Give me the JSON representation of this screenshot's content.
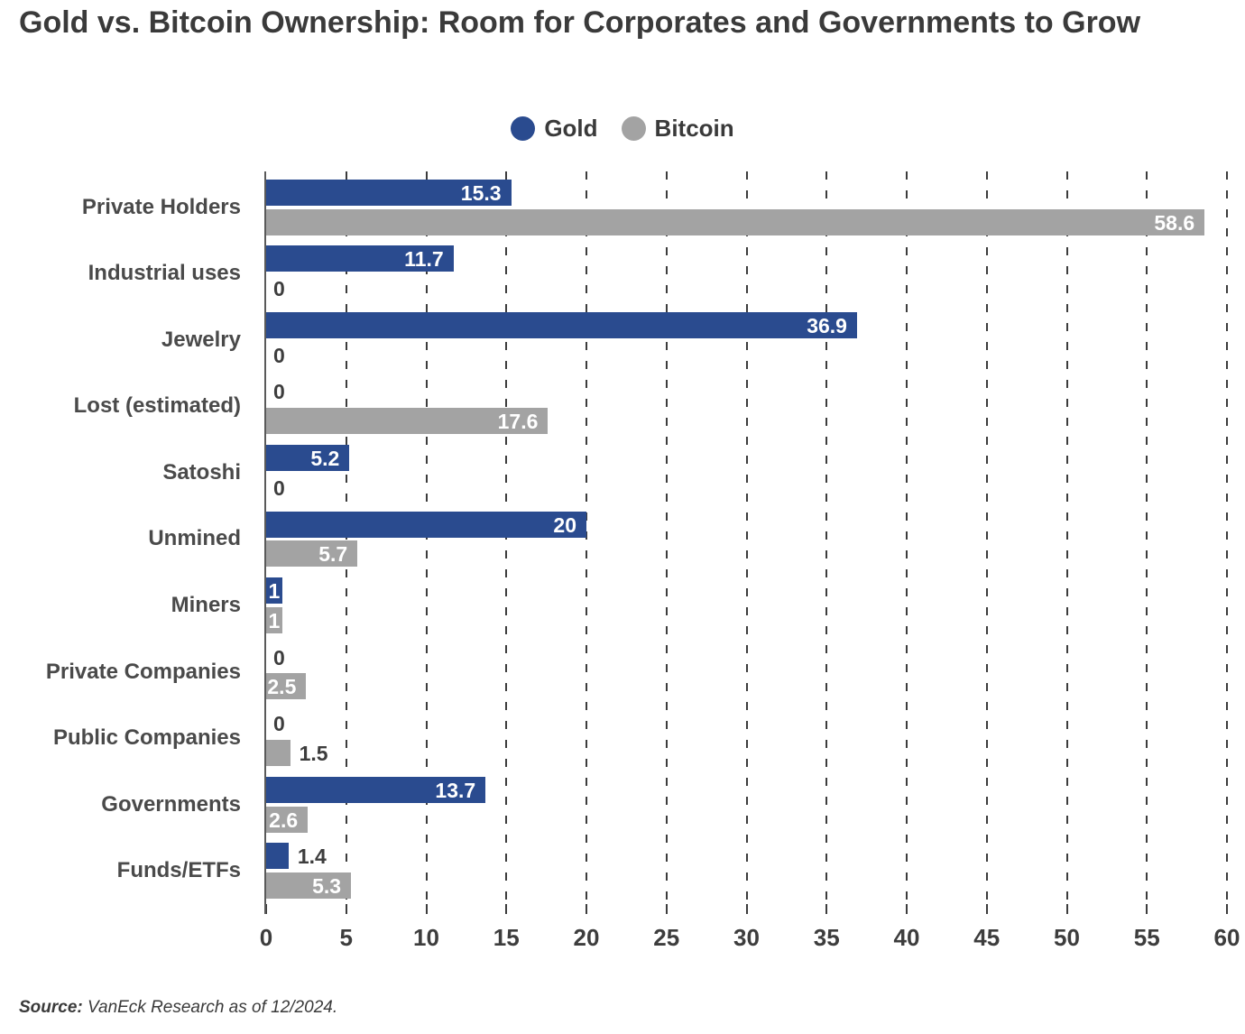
{
  "title": "Gold vs. Bitcoin Ownership: Room for Corporates and Governments to Grow",
  "legend": {
    "items": [
      {
        "label": "Gold",
        "color": "#2a4b8f"
      },
      {
        "label": "Bitcoin",
        "color": "#a3a3a3"
      }
    ]
  },
  "source": {
    "label": "Source:",
    "text": " VanEck Research as of 12/2024."
  },
  "colors": {
    "gold_bar": "#2a4b8f",
    "bitcoin_bar": "#a3a3a3",
    "title_text": "#3a3a3a",
    "axis_text": "#3d3d3d",
    "gridline": "#3c3c3c",
    "value_label_inside": "#ffffff",
    "value_label_outside": "#3d3d3d"
  },
  "chart_data": {
    "type": "bar",
    "orientation": "horizontal",
    "title": "Gold vs. Bitcoin Ownership: Room for Corporates and Governments to Grow",
    "categories": [
      "Private Holders",
      "Industrial uses",
      "Jewelry",
      "Lost (estimated)",
      "Satoshi",
      "Unmined",
      "Miners",
      "Private Companies",
      "Public Companies",
      "Governments",
      "Funds/ETFs"
    ],
    "series": [
      {
        "name": "Gold",
        "color": "#2a4b8f",
        "values": [
          15.3,
          11.7,
          36.9,
          0,
          5.2,
          20,
          1,
          0,
          0,
          13.7,
          1.4
        ]
      },
      {
        "name": "Bitcoin",
        "color": "#a3a3a3",
        "values": [
          58.6,
          0,
          0,
          17.6,
          0,
          5.7,
          1,
          2.5,
          1.5,
          2.6,
          5.3
        ]
      }
    ],
    "xlabel": "",
    "ylabel": "",
    "xlim": [
      0,
      60
    ],
    "xticks": [
      0,
      5,
      10,
      15,
      20,
      25,
      30,
      35,
      40,
      45,
      50,
      55,
      60
    ],
    "grid": "vertical-dashed",
    "legend_position": "top-center",
    "value_labels": true
  }
}
